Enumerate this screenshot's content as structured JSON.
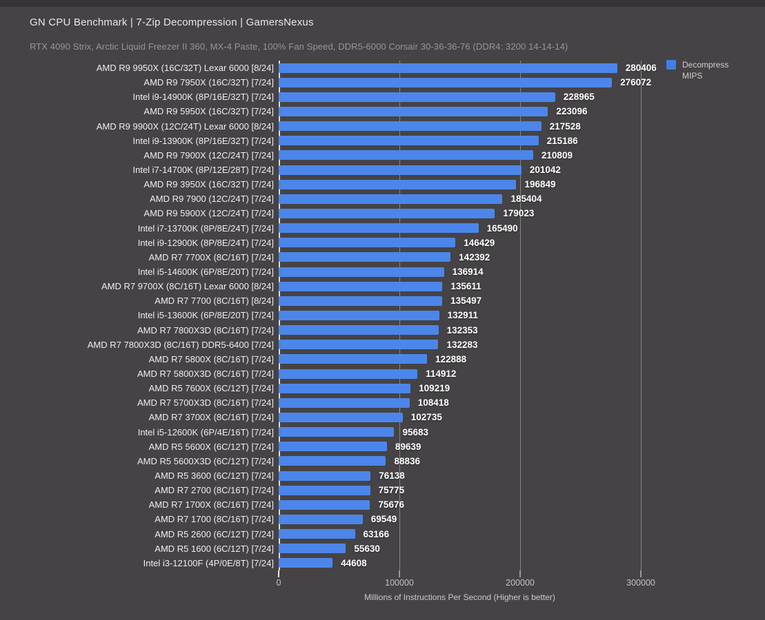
{
  "page": {
    "title": "GN CPU Benchmark | 7-Zip Decompression | GamersNexus",
    "subtitle": "RTX 4090 Strix, Arctic Liquid Freezer II 360, MX-4 Paste, 100% Fan Speed, DDR5-6000 Corsair 30-36-36-76 (DDR4: 3200 14-14-14)"
  },
  "legend": {
    "line1": "Decompress",
    "line2": "MIPS",
    "swatch_color": "#4080e8"
  },
  "colors": {
    "background": "#454345",
    "top_strip": "#363436",
    "bar": "#4c86ea",
    "gridline": "#868686",
    "zero_axis": "#dcdcdc",
    "title_text": "#e9e9e9",
    "subtitle_text": "#97959a",
    "label_text": "#efefef",
    "value_text": "#ffffff"
  },
  "chart_data": {
    "type": "bar",
    "orientation": "horizontal",
    "title": "GN CPU Benchmark | 7-Zip Decompression | GamersNexus",
    "subtitle": "RTX 4090 Strix, Arctic Liquid Freezer II 360, MX-4 Paste, 100% Fan Speed, DDR5-6000 Corsair 30-36-36-76 (DDR4: 3200 14-14-14)",
    "legend_label": "Decompress MIPS",
    "legend_position": "top-right",
    "xlabel": "Millions of Instructions Per Second (Higher is better)",
    "ylabel": "",
    "xlim": [
      0,
      300000
    ],
    "x_ticks": [
      0,
      100000,
      200000,
      300000
    ],
    "grid": true,
    "categories": [
      "AMD R9 9950X (16C/32T) Lexar 6000 [8/24]",
      "AMD R9 7950X (16C/32T) [7/24]",
      "Intel i9-14900K (8P/16E/32T) [7/24]",
      "AMD R9 5950X (16C/32T) [7/24]",
      "AMD R9 9900X (12C/24T) Lexar 6000 [8/24]",
      "Intel i9-13900K (8P/16E/32T) [7/24]",
      "AMD R9 7900X (12C/24T) [7/24]",
      "Intel i7-14700K (8P/12E/28T) [7/24]",
      "AMD R9 3950X (16C/32T) [7/24]",
      "AMD R9 7900 (12C/24T) [7/24]",
      "AMD R9 5900X (12C/24T) [7/24]",
      "Intel i7-13700K (8P/8E/24T) [7/24]",
      "Intel i9-12900K (8P/8E/24T) [7/24]",
      "AMD R7 7700X (8C/16T) [7/24]",
      "Intel i5-14600K (6P/8E/20T) [7/24]",
      "AMD R7 9700X (8C/16T) Lexar 6000 [8/24]",
      "AMD R7 7700 (8C/16T) [8/24]",
      "Intel i5-13600K (6P/8E/20T) [7/24]",
      "AMD R7 7800X3D (8C/16T) [7/24]",
      "AMD R7 7800X3D (8C/16T) DDR5-6400 [7/24]",
      "AMD R7 5800X (8C/16T) [7/24]",
      "AMD R7 5800X3D (8C/16T) [7/24]",
      "AMD R5 7600X (6C/12T) [7/24]",
      "AMD R7 5700X3D (8C/16T) [7/24]",
      "AMD R7 3700X (8C/16T) [7/24]",
      "Intel i5-12600K (6P/4E/16T) [7/24]",
      "AMD R5 5600X (6C/12T) [7/24]",
      "AMD R5 5600X3D (6C/12T) [7/24]",
      "AMD R5 3600 (6C/12T) [7/24]",
      "AMD R7 2700 (8C/16T) [7/24]",
      "AMD R7 1700X (8C/16T) [7/24]",
      "AMD R7 1700 (8C/16T) [7/24]",
      "AMD R5 2600 (6C/12T) [7/24]",
      "AMD R5 1600 (6C/12T) [7/24]",
      "Intel i3-12100F (4P/0E/8T) [7/24]"
    ],
    "values": [
      280406,
      276072,
      228965,
      223096,
      217528,
      215186,
      210809,
      201042,
      196849,
      185404,
      179023,
      165490,
      146429,
      142392,
      136914,
      135611,
      135497,
      132911,
      132353,
      132283,
      122888,
      114912,
      109219,
      108418,
      102735,
      95683,
      89639,
      88836,
      76138,
      75775,
      75676,
      69549,
      63166,
      55630,
      44608
    ]
  }
}
